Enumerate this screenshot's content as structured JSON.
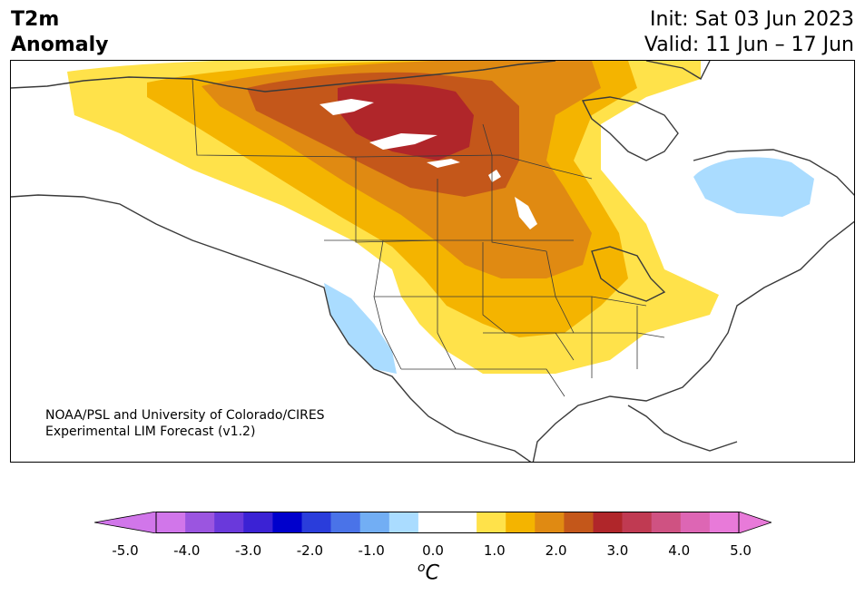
{
  "title": {
    "left_line1": "T2m",
    "left_line2": "Anomaly",
    "init": "Init: Sat 03 Jun 2023",
    "valid": "Valid: 11 Jun – 17 Jun"
  },
  "credit": {
    "line1": "NOAA/PSL and University of Colorado/CIRES",
    "line2": "Experimental LIM Forecast (v1.2)"
  },
  "colorbar": {
    "ticks": [
      "-5.0",
      "-4.0",
      "-3.0",
      "-2.0",
      "-1.0",
      "0.0",
      "1.0",
      "2.0",
      "3.0",
      "4.0",
      "5.0"
    ],
    "unit_sup": "o",
    "unit": "C",
    "colors": [
      "#d176ea",
      "#9b55e0",
      "#6a39db",
      "#3b22d4",
      "#0000cc",
      "#2a3ddb",
      "#4a73e8",
      "#72aef4",
      "#aadcff",
      "#ffffff",
      "#ffffff",
      "#ffe24a",
      "#f4b400",
      "#e08a12",
      "#c4571a",
      "#b0262a",
      "#c03a52",
      "#cf5282",
      "#dd66b4",
      "#e87ad9"
    ],
    "extend_low": "#d176ea",
    "extend_high": "#e87ad9"
  }
}
